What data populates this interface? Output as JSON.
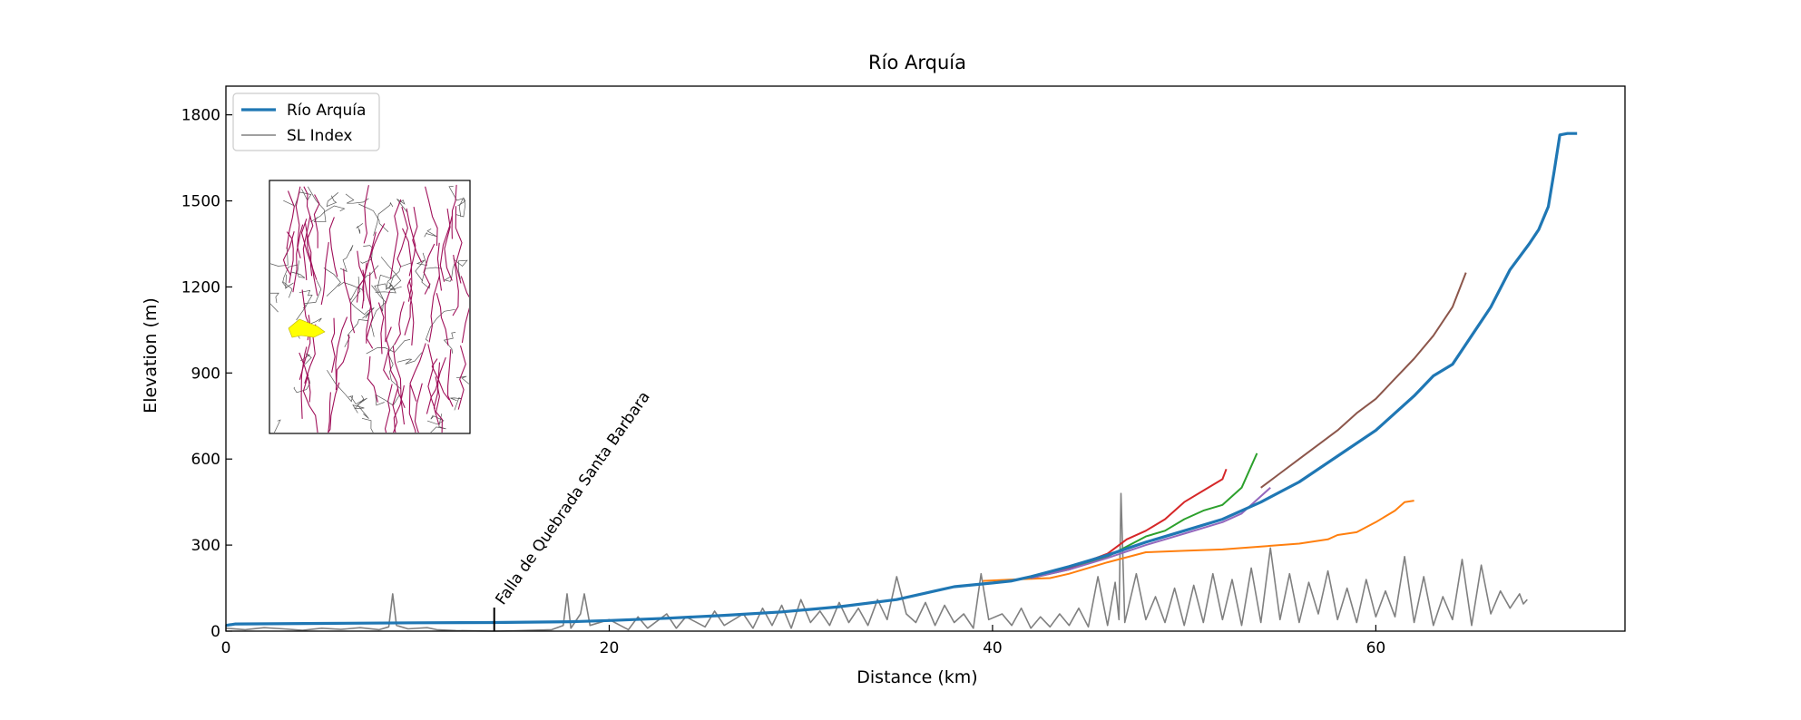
{
  "chart_data": {
    "type": "line",
    "title": "Río Arquía",
    "xlabel": "Distance (km)",
    "ylabel": "Elevation (m)",
    "xlim": [
      0,
      73
    ],
    "ylim": [
      0,
      1900
    ],
    "xticks": [
      0,
      20,
      40,
      60
    ],
    "yticks": [
      0,
      300,
      600,
      900,
      1200,
      1500,
      1800
    ],
    "grid": false,
    "legend_position": "top-left",
    "annotation": {
      "text": "Falla de Quebrada Santa Barbara",
      "x": 14
    },
    "inset": {
      "description_icon": "fault-map-inset",
      "highlight_color": "#ffff00",
      "fault_color": "#a0105a"
    },
    "series": [
      {
        "name": "Río Arquía",
        "color": "#1f77b4",
        "width": 3.2,
        "legend": true,
        "points": [
          [
            0,
            20
          ],
          [
            0.5,
            25
          ],
          [
            5,
            27
          ],
          [
            10,
            29
          ],
          [
            14,
            30
          ],
          [
            18,
            33
          ],
          [
            20,
            37
          ],
          [
            23,
            45
          ],
          [
            26,
            55
          ],
          [
            29,
            67
          ],
          [
            32,
            85
          ],
          [
            35,
            110
          ],
          [
            37,
            140
          ],
          [
            38,
            155
          ],
          [
            40,
            168
          ],
          [
            41,
            175
          ],
          [
            42,
            190
          ],
          [
            44,
            225
          ],
          [
            46,
            265
          ],
          [
            48,
            310
          ],
          [
            50,
            350
          ],
          [
            52,
            390
          ],
          [
            54,
            450
          ],
          [
            56,
            520
          ],
          [
            58,
            610
          ],
          [
            60,
            700
          ],
          [
            62,
            820
          ],
          [
            63,
            890
          ],
          [
            64,
            930
          ],
          [
            65,
            1030
          ],
          [
            66,
            1130
          ],
          [
            67,
            1260
          ],
          [
            68,
            1350
          ],
          [
            68.5,
            1400
          ],
          [
            69,
            1480
          ],
          [
            69.3,
            1600
          ],
          [
            69.6,
            1730
          ],
          [
            70,
            1735
          ],
          [
            70.5,
            1735
          ]
        ]
      },
      {
        "name": "SL Index",
        "color": "#808080",
        "width": 1.6,
        "legend": true,
        "points": [
          [
            0,
            10
          ],
          [
            1,
            5
          ],
          [
            2,
            12
          ],
          [
            3,
            8
          ],
          [
            4,
            3
          ],
          [
            5,
            10
          ],
          [
            6,
            6
          ],
          [
            7,
            12
          ],
          [
            8,
            5
          ],
          [
            8.5,
            15
          ],
          [
            8.7,
            130
          ],
          [
            8.9,
            20
          ],
          [
            9.5,
            8
          ],
          [
            10.5,
            12
          ],
          [
            11,
            5
          ],
          [
            12,
            2
          ],
          [
            13,
            1
          ],
          [
            14,
            0
          ],
          [
            15,
            1
          ],
          [
            16,
            3
          ],
          [
            17,
            5
          ],
          [
            17.6,
            20
          ],
          [
            17.8,
            130
          ],
          [
            18,
            10
          ],
          [
            18.5,
            60
          ],
          [
            18.7,
            130
          ],
          [
            19,
            20
          ],
          [
            20,
            40
          ],
          [
            21,
            5
          ],
          [
            21.5,
            50
          ],
          [
            22,
            10
          ],
          [
            23,
            60
          ],
          [
            23.5,
            10
          ],
          [
            24,
            50
          ],
          [
            25,
            15
          ],
          [
            25.5,
            70
          ],
          [
            26,
            20
          ],
          [
            27,
            60
          ],
          [
            27.5,
            10
          ],
          [
            28,
            80
          ],
          [
            28.5,
            20
          ],
          [
            29,
            90
          ],
          [
            29.5,
            10
          ],
          [
            30,
            110
          ],
          [
            30.5,
            30
          ],
          [
            31,
            70
          ],
          [
            31.5,
            20
          ],
          [
            32,
            100
          ],
          [
            32.5,
            30
          ],
          [
            33,
            80
          ],
          [
            33.5,
            20
          ],
          [
            34,
            110
          ],
          [
            34.5,
            40
          ],
          [
            35,
            190
          ],
          [
            35.5,
            60
          ],
          [
            36,
            30
          ],
          [
            36.5,
            100
          ],
          [
            37,
            20
          ],
          [
            37.5,
            90
          ],
          [
            38,
            30
          ],
          [
            38.5,
            60
          ],
          [
            39,
            10
          ],
          [
            39.4,
            200
          ],
          [
            39.8,
            40
          ],
          [
            40.5,
            60
          ],
          [
            41,
            20
          ],
          [
            41.5,
            80
          ],
          [
            42,
            10
          ],
          [
            42.5,
            50
          ],
          [
            43,
            15
          ],
          [
            43.5,
            60
          ],
          [
            44,
            20
          ],
          [
            44.5,
            80
          ],
          [
            45,
            15
          ],
          [
            45.5,
            190
          ],
          [
            46,
            20
          ],
          [
            46.4,
            170
          ],
          [
            46.6,
            40
          ],
          [
            46.7,
            480
          ],
          [
            46.9,
            30
          ],
          [
            47.5,
            200
          ],
          [
            48,
            40
          ],
          [
            48.5,
            120
          ],
          [
            49,
            30
          ],
          [
            49.5,
            150
          ],
          [
            50,
            20
          ],
          [
            50.5,
            160
          ],
          [
            51,
            30
          ],
          [
            51.5,
            200
          ],
          [
            52,
            40
          ],
          [
            52.5,
            180
          ],
          [
            53,
            20
          ],
          [
            53.5,
            220
          ],
          [
            54,
            30
          ],
          [
            54.5,
            290
          ],
          [
            55,
            40
          ],
          [
            55.5,
            200
          ],
          [
            56,
            30
          ],
          [
            56.5,
            170
          ],
          [
            57,
            60
          ],
          [
            57.5,
            210
          ],
          [
            58,
            40
          ],
          [
            58.5,
            150
          ],
          [
            59,
            30
          ],
          [
            59.5,
            180
          ],
          [
            60,
            50
          ],
          [
            60.5,
            140
          ],
          [
            61,
            50
          ],
          [
            61.5,
            260
          ],
          [
            62,
            30
          ],
          [
            62.5,
            190
          ],
          [
            63,
            20
          ],
          [
            63.5,
            120
          ],
          [
            64,
            40
          ],
          [
            64.5,
            250
          ],
          [
            65,
            20
          ],
          [
            65.5,
            230
          ],
          [
            66,
            60
          ],
          [
            66.5,
            140
          ],
          [
            67,
            80
          ],
          [
            67.5,
            130
          ],
          [
            67.7,
            95
          ],
          [
            67.9,
            110
          ]
        ]
      },
      {
        "name": "",
        "color": "#ff7f0e",
        "width": 2,
        "legend": false,
        "points": [
          [
            39.5,
            175
          ],
          [
            41,
            180
          ],
          [
            43,
            185
          ],
          [
            44,
            200
          ],
          [
            46,
            240
          ],
          [
            48,
            275
          ],
          [
            50,
            280
          ],
          [
            52,
            285
          ],
          [
            54,
            295
          ],
          [
            56,
            305
          ],
          [
            57.5,
            320
          ],
          [
            58,
            335
          ],
          [
            59,
            345
          ],
          [
            60,
            380
          ],
          [
            61,
            420
          ],
          [
            61.5,
            450
          ],
          [
            62,
            455
          ]
        ]
      },
      {
        "name": "",
        "color": "#2ca02c",
        "width": 2,
        "legend": false,
        "points": [
          [
            42,
            185
          ],
          [
            44,
            215
          ],
          [
            46,
            260
          ],
          [
            48,
            330
          ],
          [
            49,
            350
          ],
          [
            50,
            390
          ],
          [
            51,
            420
          ],
          [
            52,
            440
          ],
          [
            53,
            500
          ],
          [
            53.8,
            620
          ]
        ]
      },
      {
        "name": "",
        "color": "#d62728",
        "width": 2,
        "legend": false,
        "points": [
          [
            42,
            185
          ],
          [
            44,
            220
          ],
          [
            46,
            270
          ],
          [
            47,
            320
          ],
          [
            48,
            350
          ],
          [
            49,
            390
          ],
          [
            50,
            450
          ],
          [
            51,
            490
          ],
          [
            52,
            530
          ],
          [
            52.2,
            565
          ]
        ]
      },
      {
        "name": "",
        "color": "#9467bd",
        "width": 2,
        "legend": false,
        "points": [
          [
            42,
            185
          ],
          [
            44,
            215
          ],
          [
            46,
            255
          ],
          [
            48,
            300
          ],
          [
            50,
            340
          ],
          [
            52,
            380
          ],
          [
            53,
            410
          ],
          [
            54.5,
            500
          ]
        ]
      },
      {
        "name": "",
        "color": "#8c564b",
        "width": 2,
        "legend": false,
        "points": [
          [
            54,
            500
          ],
          [
            55,
            550
          ],
          [
            56,
            600
          ],
          [
            57,
            650
          ],
          [
            58,
            700
          ],
          [
            59,
            760
          ],
          [
            60,
            810
          ],
          [
            61,
            880
          ],
          [
            62,
            950
          ],
          [
            63,
            1030
          ],
          [
            64,
            1130
          ],
          [
            64.7,
            1250
          ]
        ]
      }
    ]
  }
}
